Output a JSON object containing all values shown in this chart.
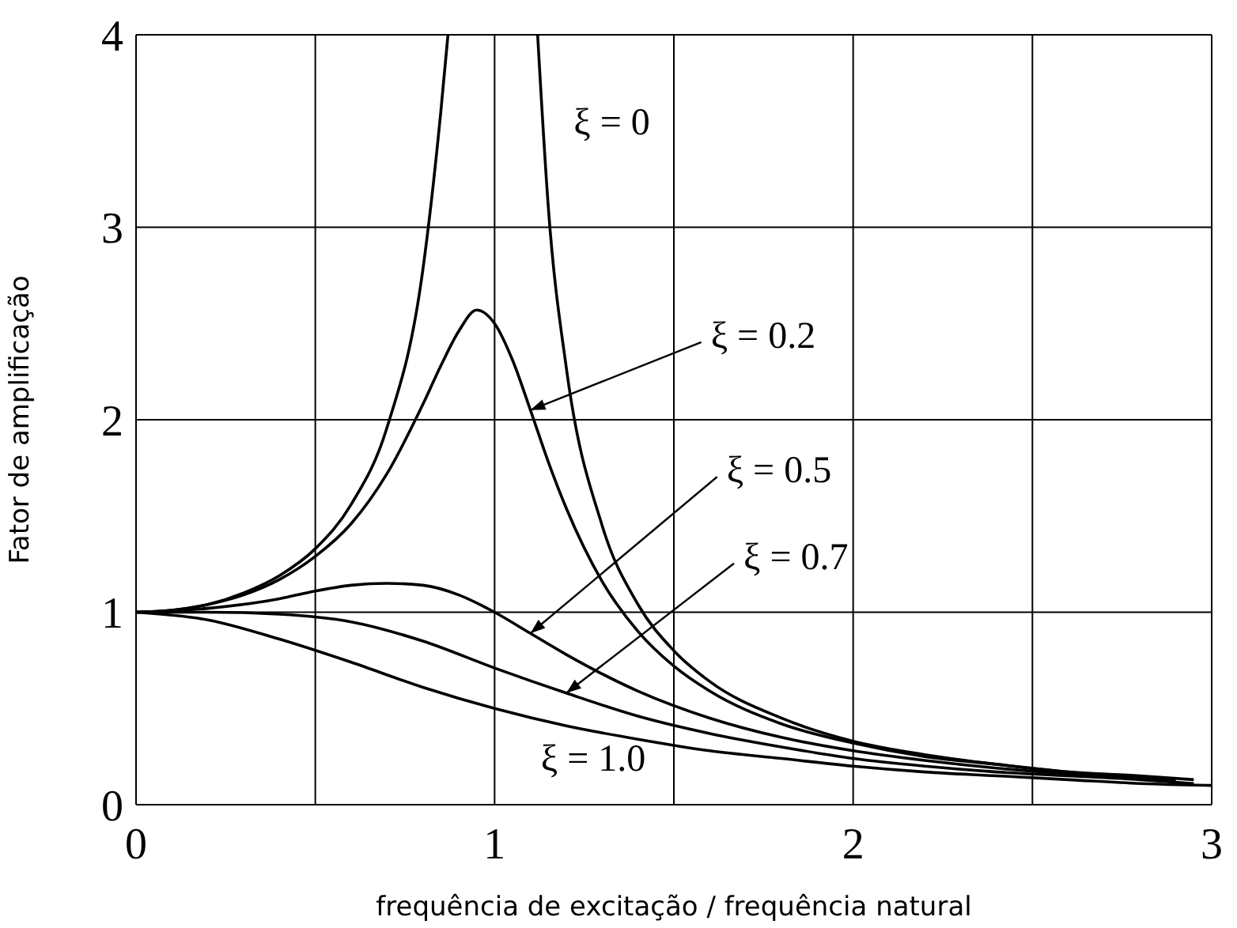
{
  "chart_data": {
    "type": "line",
    "xlabel": "frequência de excitação / frequência natural",
    "ylabel": "Fator de amplificação",
    "xlim": [
      0,
      3
    ],
    "ylim": [
      0,
      4
    ],
    "xticks": [
      0,
      {
        "value": 0.5,
        "label": null
      },
      1,
      {
        "value": 1.5,
        "label": null
      },
      2,
      {
        "value": 2.5,
        "label": null
      },
      3
    ],
    "yticks": [
      0,
      1,
      2,
      3,
      4
    ],
    "grid": true,
    "marker": "none",
    "line_style": "solid",
    "series": [
      {
        "color": "#000000",
        "x": [
          0,
          0.1,
          0.2,
          0.3,
          0.4,
          0.5,
          0.6,
          0.7,
          0.8,
          0.85,
          0.87,
          1.0,
          1.12,
          1.15,
          1.2,
          1.3,
          1.4,
          1.5,
          1.6,
          1.8,
          2.0,
          2.2,
          2.4,
          2.6,
          2.8,
          2.95
        ],
        "values": [
          1,
          1.01,
          1.04,
          1.1,
          1.19,
          1.33,
          1.56,
          1.96,
          2.78,
          3.6,
          4,
          null,
          4,
          3.1,
          2.27,
          1.45,
          1.04,
          0.8,
          0.64,
          0.45,
          0.33,
          0.26,
          0.21,
          0.17,
          0.15,
          0.13
        ]
      },
      {
        "color": "#000000",
        "x": [
          0,
          0.1,
          0.2,
          0.3,
          0.4,
          0.5,
          0.6,
          0.7,
          0.8,
          0.85,
          0.9,
          0.95,
          1.0,
          1.05,
          1.1,
          1.15,
          1.2,
          1.3,
          1.4,
          1.5,
          1.6,
          1.8,
          2.0,
          2.2,
          2.4,
          2.6,
          2.8
        ],
        "values": [
          1,
          1.01,
          1.04,
          1.09,
          1.17,
          1.29,
          1.46,
          1.72,
          2.08,
          2.28,
          2.46,
          2.57,
          2.5,
          2.31,
          2.05,
          1.78,
          1.54,
          1.16,
          0.9,
          0.72,
          0.59,
          0.42,
          0.32,
          0.25,
          0.21,
          0.17,
          0.14
        ]
      },
      {
        "color": "#000000",
        "x": [
          0,
          0.2,
          0.4,
          0.5,
          0.6,
          0.7,
          0.8,
          0.9,
          1.0,
          1.1,
          1.2,
          1.4,
          1.6,
          1.8,
          2.0,
          2.2,
          2.4,
          2.6,
          2.8,
          2.9
        ],
        "values": [
          1,
          1.02,
          1.07,
          1.11,
          1.14,
          1.15,
          1.14,
          1.09,
          1.0,
          0.89,
          0.78,
          0.59,
          0.45,
          0.35,
          0.28,
          0.23,
          0.19,
          0.16,
          0.14,
          0.13
        ]
      },
      {
        "color": "#000000",
        "x": [
          0,
          0.2,
          0.4,
          0.6,
          0.8,
          1.0,
          1.2,
          1.4,
          1.6,
          1.8,
          2.0,
          2.2,
          2.4,
          2.6,
          2.8,
          2.95
        ],
        "values": [
          1,
          1.0,
          0.99,
          0.95,
          0.85,
          0.71,
          0.58,
          0.46,
          0.37,
          0.3,
          0.24,
          0.2,
          0.17,
          0.15,
          0.13,
          0.11
        ]
      },
      {
        "color": "#000000",
        "x": [
          0,
          0.2,
          0.4,
          0.6,
          0.8,
          1.0,
          1.2,
          1.4,
          1.6,
          1.8,
          2.0,
          2.2,
          2.4,
          2.6,
          2.8,
          3.0
        ],
        "values": [
          1,
          0.96,
          0.86,
          0.74,
          0.61,
          0.5,
          0.41,
          0.34,
          0.28,
          0.24,
          0.2,
          0.17,
          0.15,
          0.13,
          0.11,
          0.1
        ]
      }
    ],
    "annotations": [
      {
        "text": "ξ = 0",
        "x": 1.15,
        "y": 3.1
      },
      {
        "text": "ξ = 0.2",
        "x": 1.1,
        "y": 2.05
      },
      {
        "text": "ξ = 0.5",
        "x": 1.1,
        "y": 0.89
      },
      {
        "text": "ξ = 0.7",
        "x": 1.2,
        "y": 0.58
      },
      {
        "text": "ξ = 1.0",
        "x": 1.2,
        "y": 0.41
      }
    ]
  }
}
